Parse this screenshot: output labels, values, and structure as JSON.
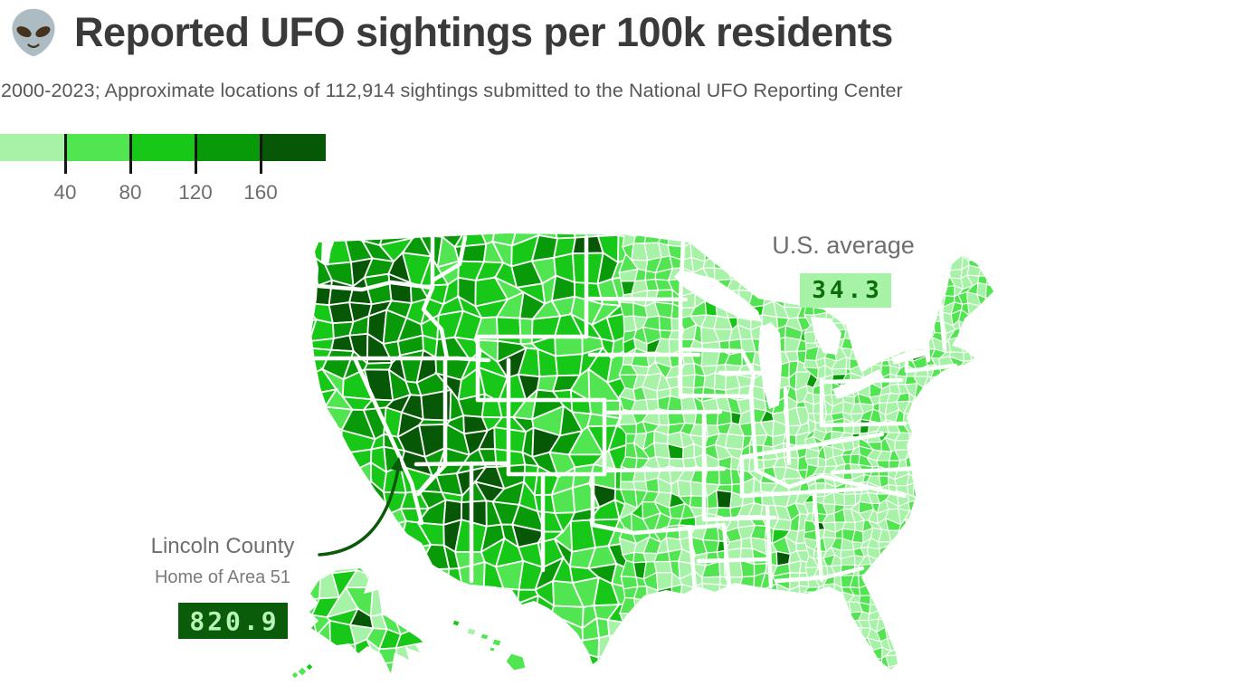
{
  "header": {
    "title": "Reported UFO sightings per 100k residents",
    "subtitle": "2000-2023; Approximate locations of 112,914 sightings submitted to the National UFO Reporting Center"
  },
  "legend": {
    "tick_labels": [
      "40",
      "80",
      "120",
      "160"
    ],
    "bin_colors": [
      "#a6f2a6",
      "#52e552",
      "#18c818",
      "#099a09",
      "#065806"
    ],
    "tick_color": "#161616"
  },
  "annotations": {
    "us_average": {
      "label": "U.S. average",
      "value": "34.3"
    },
    "lincoln_county": {
      "label": "Lincoln County",
      "sublabel": "Home of Area 51",
      "value": "820.9"
    }
  },
  "colors": {
    "title_text": "#3a3a3a",
    "subtitle_text": "#575757",
    "label_text": "#6e6e6e",
    "light_badge_bg": "#a6f2a6",
    "light_badge_text": "#0b6e0b",
    "dark_badge_bg": "#0a5c0a",
    "dark_badge_text": "#b7f6b7",
    "arrow": "#0a5a0a",
    "county_border": "#ffffff"
  },
  "chart_data": {
    "type": "choropleth",
    "title": "Reported UFO sightings per 100k residents",
    "subtitle": "2000-2023; Approximate locations of 112,914 sightings submitted to the National UFO Reporting Center",
    "geography": "United States counties, contiguous U.S. with Alaska and Hawaii insets",
    "metric": "Reported UFO sightings per 100k residents",
    "period": "2000-2023",
    "total_sightings": 112914,
    "source": "National UFO Reporting Center",
    "color_scale": {
      "kind": "threshold",
      "breaks": [
        40,
        80,
        120,
        160
      ],
      "colors": [
        "#a6f2a6",
        "#52e552",
        "#18c818",
        "#099a09",
        "#065806"
      ],
      "legend_position": "top-left"
    },
    "callouts": [
      {
        "label": "U.S. average",
        "value": 34.3,
        "style": "light-green badge"
      },
      {
        "label": "Lincoln County",
        "sublabel": "Home of Area 51",
        "value": 820.9,
        "style": "dark-green badge",
        "arrow_target": "Lincoln County, Nevada"
      }
    ],
    "pattern_summary": "Highest rates (darkest greens) across the Pacific Northwest, Nevada, Utah, Colorado and New Mexico; lightest rates across the Midwest, South and East Coast"
  }
}
